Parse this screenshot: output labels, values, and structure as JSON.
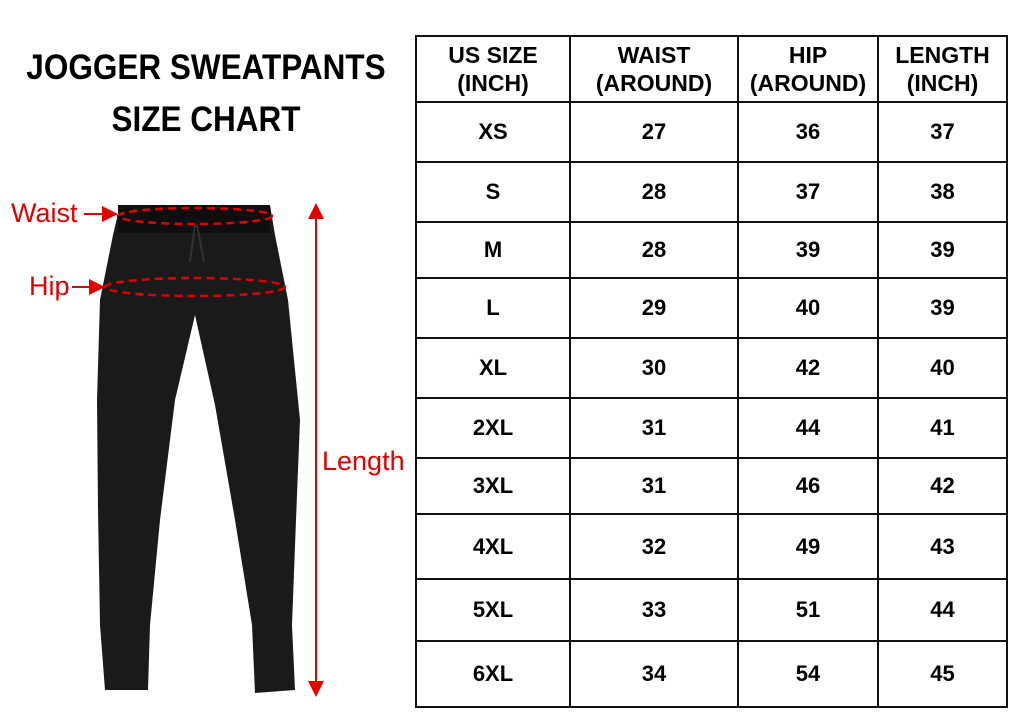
{
  "title_line1": "JOGGER SWEATPANTS",
  "title_line2": "SIZE CHART",
  "labels": {
    "waist": "Waist",
    "hip": "Hip",
    "length": "Length"
  },
  "colors": {
    "annotation": "#e00000",
    "pants": "#1a1a1a",
    "border": "#111111"
  },
  "chart_data": {
    "type": "table",
    "columns": [
      [
        "US SIZE",
        "(INCH)"
      ],
      [
        "WAIST",
        "(AROUND)"
      ],
      [
        "HIP",
        "(AROUND)"
      ],
      [
        "LENGTH",
        "(INCH)"
      ]
    ],
    "rows": [
      [
        "XS",
        "27",
        "36",
        "37"
      ],
      [
        "S",
        "28",
        "37",
        "38"
      ],
      [
        "M",
        "28",
        "39",
        "39"
      ],
      [
        "L",
        "29",
        "40",
        "39"
      ],
      [
        "XL",
        "30",
        "42",
        "40"
      ],
      [
        "2XL",
        "31",
        "44",
        "41"
      ],
      [
        "3XL",
        "31",
        "46",
        "42"
      ],
      [
        "4XL",
        "32",
        "49",
        "43"
      ],
      [
        "5XL",
        "33",
        "51",
        "44"
      ],
      [
        "6XL",
        "34",
        "54",
        "45"
      ]
    ]
  }
}
